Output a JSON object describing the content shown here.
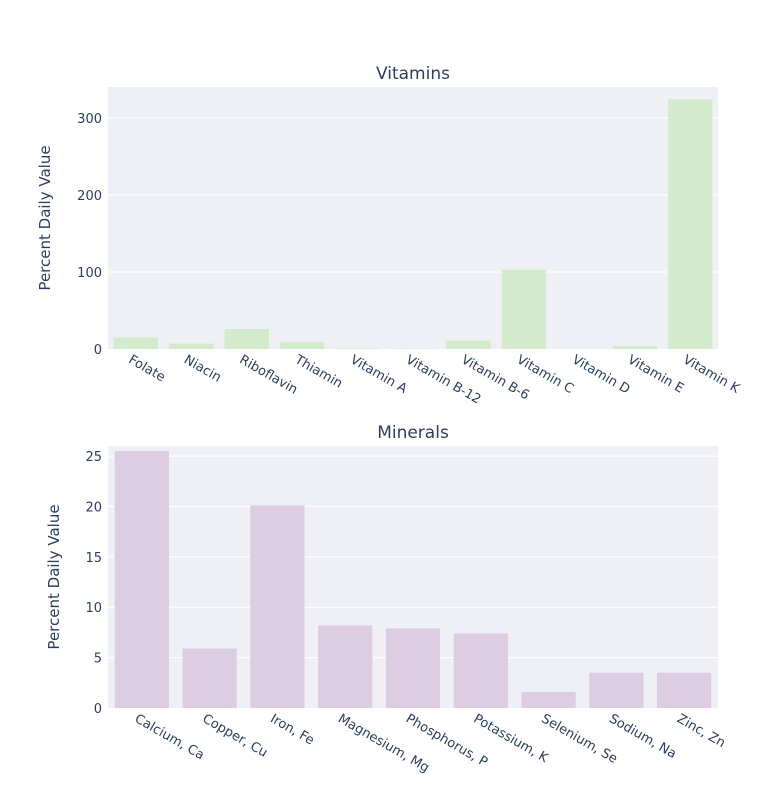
{
  "chart_data": [
    {
      "type": "bar",
      "title": "Vitamins",
      "xlabel": "",
      "ylabel": "Percent Daily Value",
      "categories": [
        "Folate",
        "Niacin",
        "Riboflavin",
        "Thiamin",
        "Vitamin A",
        "Vitamin B-12",
        "Vitamin B-6",
        "Vitamin C",
        "Vitamin D",
        "Vitamin E",
        "Vitamin K"
      ],
      "values": [
        15,
        7,
        26,
        9,
        0.8,
        0.5,
        11,
        103,
        0,
        4,
        324
      ],
      "ylim": [
        0,
        340
      ],
      "yticks": [
        0,
        100,
        200,
        300
      ],
      "color": "#d4ebcb",
      "plot_bg": "#eff0f6",
      "grid": true
    },
    {
      "type": "bar",
      "title": "Minerals",
      "xlabel": "",
      "ylabel": "Percent Daily Value",
      "categories": [
        "Calcium, Ca",
        "Copper, Cu",
        "Iron, Fe",
        "Magnesium, Mg",
        "Phosphorus, P",
        "Potassium, K",
        "Selenium, Se",
        "Sodium, Na",
        "Zinc, Zn"
      ],
      "values": [
        25.5,
        5.9,
        20.1,
        8.2,
        7.9,
        7.4,
        1.6,
        3.5,
        3.5
      ],
      "ylim": [
        0,
        26
      ],
      "yticks": [
        0,
        5,
        10,
        15,
        20,
        25
      ],
      "color": "#dccde2",
      "plot_bg": "#eff0f6",
      "grid": true
    }
  ]
}
